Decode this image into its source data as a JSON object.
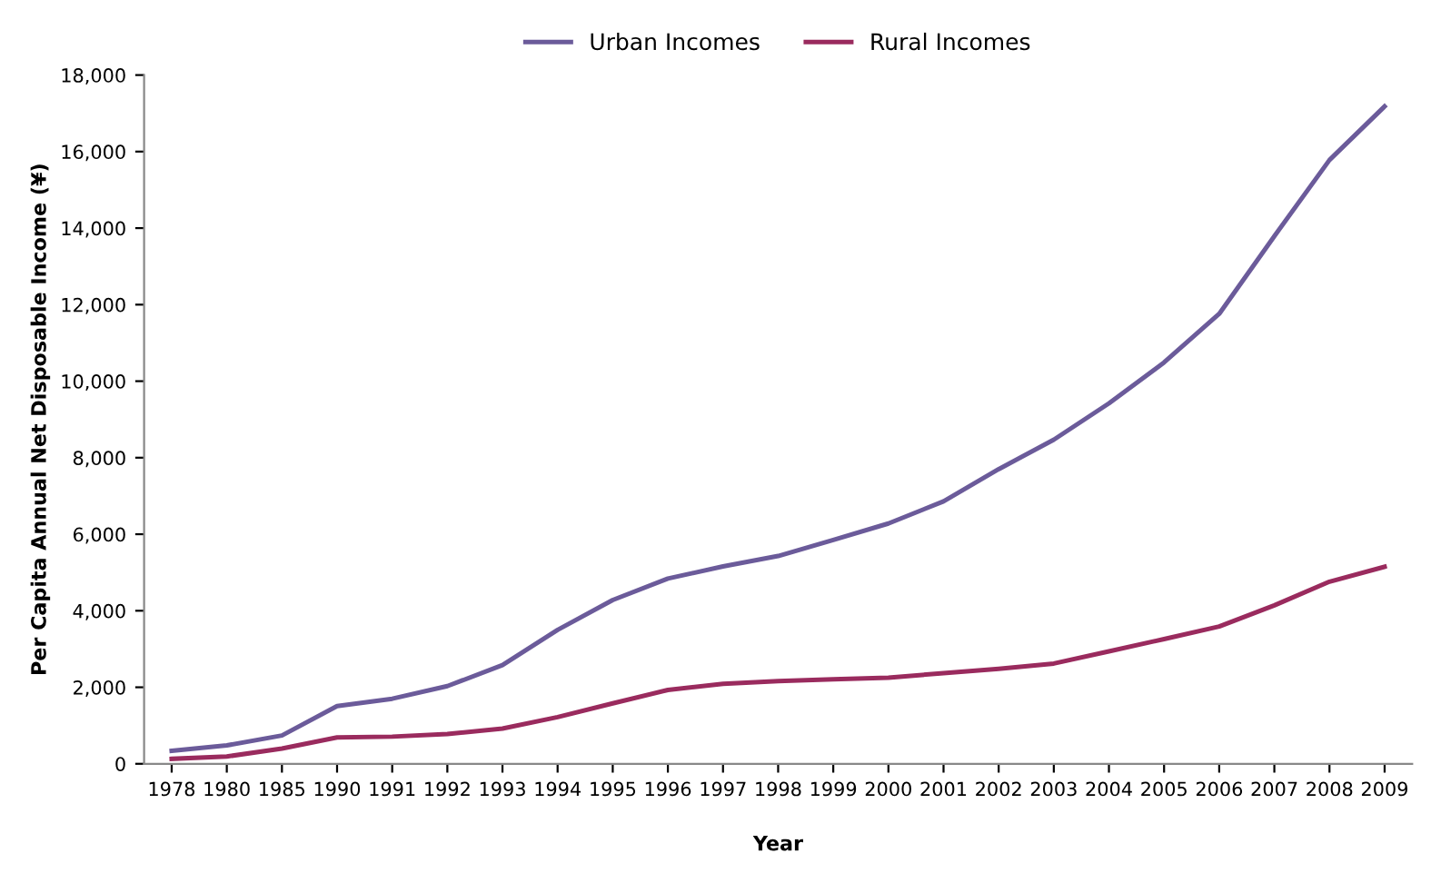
{
  "chart_data": {
    "type": "line",
    "xlabel": "Year",
    "ylabel": "Per Capita Annual Net Disposable Income (¥)",
    "categories": [
      "1978",
      "1980",
      "1985",
      "1990",
      "1991",
      "1992",
      "1993",
      "1994",
      "1995",
      "1996",
      "1997",
      "1998",
      "1999",
      "2000",
      "2001",
      "2002",
      "2003",
      "2004",
      "2005",
      "2006",
      "2007",
      "2008",
      "2009"
    ],
    "series": [
      {
        "name": "Urban Incomes",
        "color": "#6b5b9a",
        "values": [
          340,
          480,
          740,
          1510,
          1700,
          2030,
          2580,
          3500,
          4280,
          4840,
          5160,
          5430,
          5850,
          6280,
          6860,
          7700,
          8470,
          9420,
          10490,
          11760,
          13790,
          15780,
          17180
        ]
      },
      {
        "name": "Rural Incomes",
        "color": "#9a2b5e",
        "values": [
          130,
          190,
          400,
          690,
          710,
          780,
          920,
          1220,
          1580,
          1930,
          2090,
          2160,
          2210,
          2250,
          2370,
          2480,
          2620,
          2940,
          3260,
          3590,
          4140,
          4760,
          5150
        ]
      }
    ],
    "ylim": [
      0,
      18000
    ],
    "yticks": [
      {
        "value": 0,
        "label": "0"
      },
      {
        "value": 2000,
        "label": "2,000"
      },
      {
        "value": 4000,
        "label": "4,000"
      },
      {
        "value": 6000,
        "label": "6,000"
      },
      {
        "value": 8000,
        "label": "8,000"
      },
      {
        "value": 10000,
        "label": "10,000"
      },
      {
        "value": 12000,
        "label": "12,000"
      },
      {
        "value": 14000,
        "label": "14,000"
      },
      {
        "value": 16000,
        "label": "16,000"
      },
      {
        "value": 18000,
        "label": "18,000"
      }
    ],
    "legend": "top",
    "marker": "none",
    "line_style": "solid"
  }
}
